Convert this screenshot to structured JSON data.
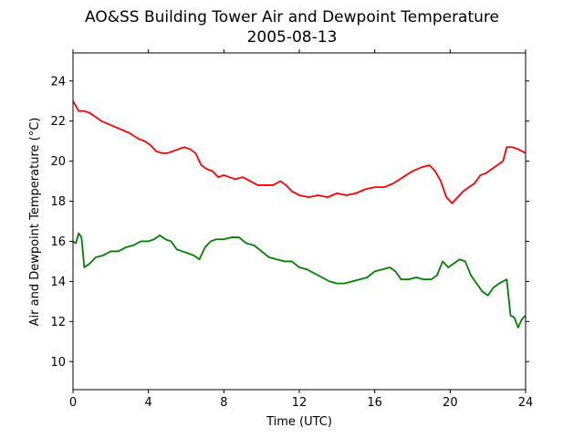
{
  "chart_data": {
    "type": "line",
    "title": "AO&SS Building Tower Air and Dewpoint Temperature",
    "subtitle": "2005-08-13",
    "xlabel": "Time (UTC)",
    "ylabel": "Air and Dewpoint Temperature (°C)",
    "xlim": [
      0,
      24
    ],
    "ylim": [
      8.6,
      25.4
    ],
    "xticks": [
      0,
      4,
      8,
      12,
      16,
      20,
      24
    ],
    "yticks": [
      10,
      12,
      14,
      16,
      18,
      20,
      22,
      24
    ],
    "grid": false,
    "legend": "none",
    "series": [
      {
        "color": "#ff0000",
        "x": [
          0,
          0.3,
          0.6,
          0.9,
          1.2,
          1.5,
          2,
          2.5,
          3,
          3.5,
          3.8,
          4.1,
          4.4,
          4.7,
          5,
          5.3,
          5.6,
          5.9,
          6.2,
          6.5,
          6.8,
          7.1,
          7.4,
          7.7,
          8,
          8.3,
          8.6,
          9,
          9.4,
          9.8,
          10.2,
          10.6,
          11,
          11.3,
          11.6,
          12,
          12.5,
          13,
          13.5,
          14,
          14.5,
          15,
          15.5,
          16,
          16.5,
          17,
          17.5,
          18,
          18.5,
          18.9,
          19.2,
          19.5,
          19.8,
          20.1,
          20.4,
          20.7,
          21,
          21.3,
          21.6,
          21.9,
          22.2,
          22.5,
          22.8,
          23,
          23.3,
          23.6,
          24
        ],
        "y": [
          23.0,
          22.5,
          22.5,
          22.4,
          22.2,
          22.0,
          21.8,
          21.6,
          21.4,
          21.1,
          21.0,
          20.8,
          20.5,
          20.4,
          20.4,
          20.5,
          20.6,
          20.7,
          20.6,
          20.4,
          19.8,
          19.6,
          19.5,
          19.2,
          19.3,
          19.2,
          19.1,
          19.2,
          19.0,
          18.8,
          18.8,
          18.8,
          19.0,
          18.8,
          18.5,
          18.3,
          18.2,
          18.3,
          18.2,
          18.4,
          18.3,
          18.4,
          18.6,
          18.7,
          18.7,
          18.9,
          19.2,
          19.5,
          19.7,
          19.8,
          19.5,
          19.0,
          18.2,
          17.9,
          18.2,
          18.5,
          18.7,
          18.9,
          19.3,
          19.4,
          19.6,
          19.8,
          20.0,
          20.7,
          20.7,
          20.6,
          20.4
        ]
      },
      {
        "color": "#008000",
        "x": [
          0,
          0.15,
          0.3,
          0.45,
          0.6,
          0.9,
          1.2,
          1.6,
          2,
          2.4,
          2.8,
          3.2,
          3.6,
          4,
          4.3,
          4.6,
          4.9,
          5.2,
          5.5,
          5.8,
          6.1,
          6.4,
          6.7,
          7,
          7.3,
          7.6,
          8,
          8.4,
          8.8,
          9.2,
          9.6,
          10,
          10.4,
          10.8,
          11.2,
          11.6,
          12,
          12.4,
          12.8,
          13.2,
          13.6,
          14,
          14.4,
          14.8,
          15.2,
          15.6,
          16,
          16.4,
          16.8,
          17.1,
          17.4,
          17.8,
          18.2,
          18.6,
          19,
          19.3,
          19.6,
          19.9,
          20.2,
          20.5,
          20.8,
          21.1,
          21.4,
          21.7,
          22,
          22.3,
          22.6,
          23,
          23.2,
          23.4,
          23.6,
          23.8,
          24
        ],
        "y": [
          16.0,
          15.9,
          16.4,
          16.2,
          14.7,
          14.9,
          15.2,
          15.3,
          15.5,
          15.5,
          15.7,
          15.8,
          16.0,
          16.0,
          16.1,
          16.3,
          16.1,
          16.0,
          15.6,
          15.5,
          15.4,
          15.3,
          15.1,
          15.7,
          16.0,
          16.1,
          16.1,
          16.2,
          16.2,
          15.9,
          15.8,
          15.5,
          15.2,
          15.1,
          15.0,
          15.0,
          14.7,
          14.6,
          14.4,
          14.2,
          14.0,
          13.9,
          13.9,
          14.0,
          14.1,
          14.2,
          14.5,
          14.6,
          14.7,
          14.5,
          14.1,
          14.1,
          14.2,
          14.1,
          14.1,
          14.3,
          15.0,
          14.7,
          14.9,
          15.1,
          15.0,
          14.3,
          13.9,
          13.5,
          13.3,
          13.7,
          13.9,
          14.1,
          12.3,
          12.2,
          11.7,
          12.1,
          12.3
        ]
      }
    ]
  }
}
